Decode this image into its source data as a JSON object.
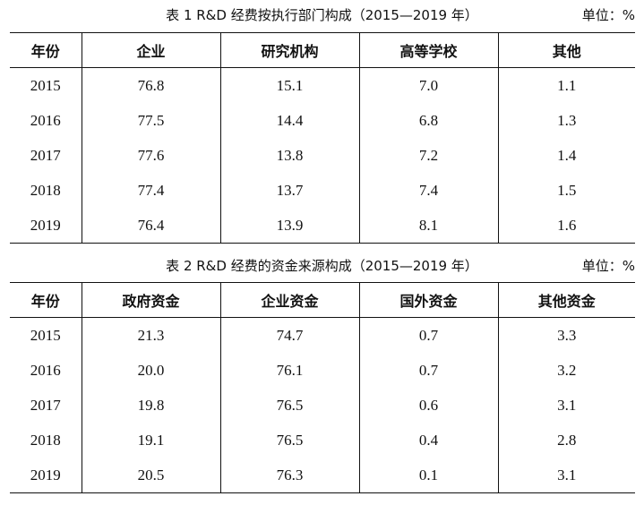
{
  "table1": {
    "caption": "表 1   R&D 经费按执行部门构成（2015—2019 年）",
    "unit": "单位：%",
    "headers": [
      "年份",
      "企业",
      "研究机构",
      "高等学校",
      "其他"
    ],
    "rows": [
      [
        "2015",
        "76.8",
        "15.1",
        "7.0",
        "1.1"
      ],
      [
        "2016",
        "77.5",
        "14.4",
        "6.8",
        "1.3"
      ],
      [
        "2017",
        "77.6",
        "13.8",
        "7.2",
        "1.4"
      ],
      [
        "2018",
        "77.4",
        "13.7",
        "7.4",
        "1.5"
      ],
      [
        "2019",
        "76.4",
        "13.9",
        "8.1",
        "1.6"
      ]
    ]
  },
  "table2": {
    "caption": "表 2   R&D 经费的资金来源构成（2015—2019 年）",
    "unit": "单位：%",
    "headers": [
      "年份",
      "政府资金",
      "企业资金",
      "国外资金",
      "其他资金"
    ],
    "rows": [
      [
        "2015",
        "21.3",
        "74.7",
        "0.7",
        "3.3"
      ],
      [
        "2016",
        "20.0",
        "76.1",
        "0.7",
        "3.2"
      ],
      [
        "2017",
        "19.8",
        "76.5",
        "0.6",
        "3.1"
      ],
      [
        "2018",
        "19.1",
        "76.5",
        "0.4",
        "2.8"
      ],
      [
        "2019",
        "20.5",
        "76.3",
        "0.1",
        "3.1"
      ]
    ]
  }
}
